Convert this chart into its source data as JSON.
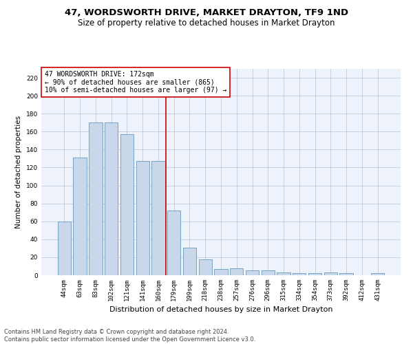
{
  "title": "47, WORDSWORTH DRIVE, MARKET DRAYTON, TF9 1ND",
  "subtitle": "Size of property relative to detached houses in Market Drayton",
  "xlabel": "Distribution of detached houses by size in Market Drayton",
  "ylabel": "Number of detached properties",
  "categories": [
    "44sqm",
    "63sqm",
    "83sqm",
    "102sqm",
    "121sqm",
    "141sqm",
    "160sqm",
    "179sqm",
    "199sqm",
    "218sqm",
    "238sqm",
    "257sqm",
    "276sqm",
    "296sqm",
    "315sqm",
    "334sqm",
    "354sqm",
    "373sqm",
    "392sqm",
    "412sqm",
    "431sqm"
  ],
  "values": [
    60,
    131,
    170,
    170,
    157,
    127,
    127,
    72,
    31,
    18,
    7,
    8,
    5,
    5,
    3,
    2,
    2,
    3,
    2,
    0,
    2
  ],
  "bar_color": "#c8d8ea",
  "bar_edge_color": "#6699bb",
  "vline_color": "#cc0000",
  "vline_index": 7,
  "annotation_text": "47 WORDSWORTH DRIVE: 172sqm\n← 90% of detached houses are smaller (865)\n10% of semi-detached houses are larger (97) →",
  "annotation_box_color": "#ffffff",
  "annotation_box_edge": "#cc0000",
  "ylim": [
    0,
    230
  ],
  "yticks": [
    0,
    20,
    40,
    60,
    80,
    100,
    120,
    140,
    160,
    180,
    200,
    220
  ],
  "footer": "Contains HM Land Registry data © Crown copyright and database right 2024.\nContains public sector information licensed under the Open Government Licence v3.0.",
  "bg_color": "#eef2fb",
  "title_fontsize": 9.5,
  "subtitle_fontsize": 8.5,
  "xlabel_fontsize": 8,
  "ylabel_fontsize": 7.5,
  "tick_fontsize": 6.5,
  "annotation_fontsize": 7,
  "footer_fontsize": 6
}
